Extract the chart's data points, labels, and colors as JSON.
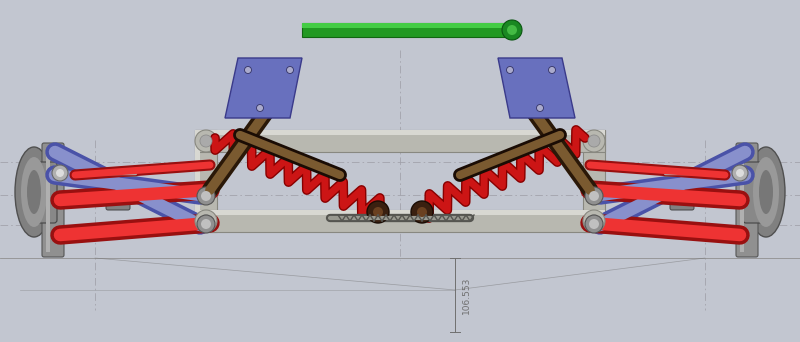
{
  "bg_color": "#c2c6d0",
  "dimension_text": "106.553",
  "chassis_color": "#b8b8b0",
  "chassis_edge": "#888880",
  "red": "#cc1515",
  "red_hi": "#ee3333",
  "blue": "#6068b8",
  "blue_hi": "#8890cc",
  "green": "#22aa22",
  "green_hi": "#44cc44",
  "brown": "#5a3a18",
  "brown_hi": "#7a5a30",
  "silver": "#a0a0a0",
  "silver_hi": "#c8c8c8",
  "dim_color": "#707070",
  "dashline_color": "#a0a0a8"
}
